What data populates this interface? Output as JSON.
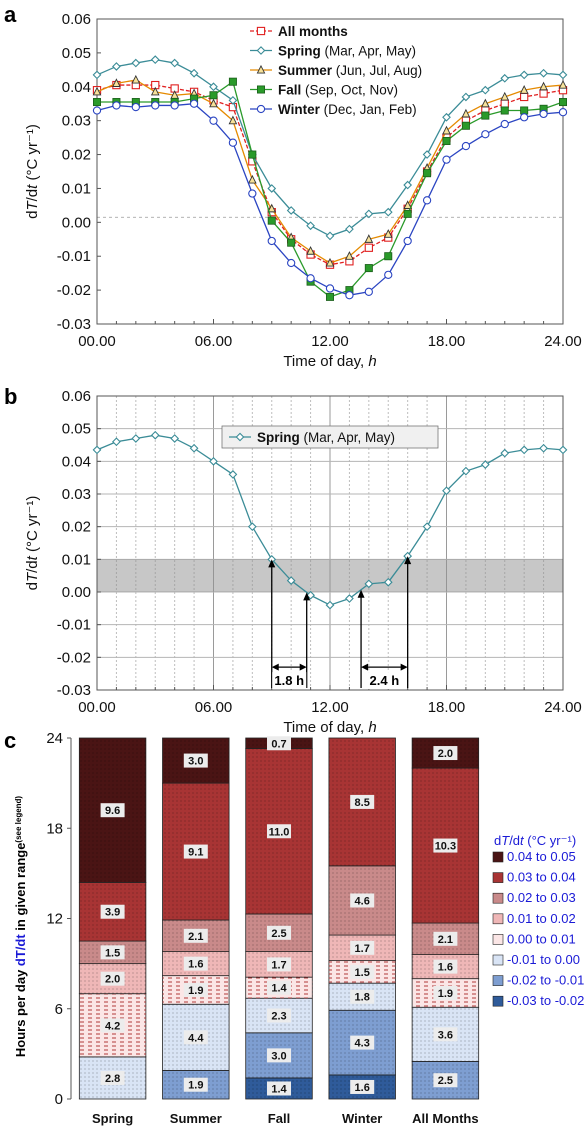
{
  "chart_data": [
    {
      "panel": "a",
      "type": "line",
      "ylabel_html": "dT/dt (°C yr⁻¹)",
      "xlabel": "Time of day, h",
      "ylim": [
        -0.03,
        0.06
      ],
      "xlim": [
        0,
        24
      ],
      "yticks": [
        "-0.03",
        "-0.02",
        "-0.01",
        "0.00",
        "0.01",
        "0.02",
        "0.03",
        "0.04",
        "0.05",
        "0.06"
      ],
      "xticks": [
        "00.00",
        "06.00",
        "12.00",
        "18.00",
        "24.00"
      ],
      "grid": false,
      "legend_position": "top-right",
      "series": [
        {
          "name": "All months",
          "detail": "",
          "color": "#e02020",
          "marker": "square-open",
          "dashed": true,
          "x": [
            0,
            1,
            2,
            3,
            4,
            5,
            6,
            7,
            8,
            9,
            10,
            11,
            12,
            13,
            14,
            15,
            16,
            17,
            18,
            19,
            20,
            21,
            22,
            23,
            24
          ],
          "y": [
            0.039,
            0.0405,
            0.0405,
            0.0405,
            0.0395,
            0.0385,
            0.036,
            0.034,
            0.018,
            0.003,
            -0.005,
            -0.0095,
            -0.0125,
            -0.0115,
            -0.0075,
            -0.0045,
            0.004,
            0.015,
            0.025,
            0.03,
            0.033,
            0.035,
            0.037,
            0.038,
            0.039
          ]
        },
        {
          "name": "Spring",
          "detail": " (Mar, Apr, May)",
          "color": "#3b8c97",
          "marker": "diamond-open",
          "dashed": false,
          "x": [
            0,
            1,
            2,
            3,
            4,
            5,
            6,
            7,
            8,
            9,
            10,
            11,
            12,
            13,
            14,
            15,
            16,
            17,
            18,
            19,
            20,
            21,
            22,
            23,
            24
          ],
          "y": [
            0.0435,
            0.046,
            0.047,
            0.048,
            0.047,
            0.044,
            0.04,
            0.036,
            0.02,
            0.01,
            0.0035,
            -0.001,
            -0.004,
            -0.002,
            0.0025,
            0.003,
            0.011,
            0.02,
            0.031,
            0.037,
            0.039,
            0.0425,
            0.0435,
            0.044,
            0.0435
          ]
        },
        {
          "name": "Summer",
          "detail": " (Jun, Jul, Aug)",
          "color": "#e58a00",
          "marker": "triangle",
          "dashed": false,
          "x": [
            0,
            1,
            2,
            3,
            4,
            5,
            6,
            7,
            8,
            9,
            10,
            11,
            12,
            13,
            14,
            15,
            16,
            17,
            18,
            19,
            20,
            21,
            22,
            23,
            24
          ],
          "y": [
            0.0385,
            0.041,
            0.042,
            0.0385,
            0.0375,
            0.038,
            0.035,
            0.03,
            0.0125,
            0.004,
            -0.0045,
            -0.0085,
            -0.012,
            -0.01,
            -0.005,
            -0.0035,
            0.005,
            0.016,
            0.027,
            0.032,
            0.035,
            0.037,
            0.039,
            0.04,
            0.0405
          ]
        },
        {
          "name": "Fall",
          "detail": " (Sep, Oct, Nov)",
          "color": "#2a9a2a",
          "marker": "square-filled",
          "dashed": false,
          "x": [
            0,
            1,
            2,
            3,
            4,
            5,
            6,
            7,
            8,
            9,
            10,
            11,
            12,
            13,
            14,
            15,
            16,
            17,
            18,
            19,
            20,
            21,
            22,
            23,
            24
          ],
          "y": [
            0.0355,
            0.0355,
            0.0355,
            0.0355,
            0.0355,
            0.0365,
            0.0375,
            0.0415,
            0.02,
            0.0005,
            -0.006,
            -0.0175,
            -0.022,
            -0.02,
            -0.0135,
            -0.01,
            0.0025,
            0.0145,
            0.024,
            0.0285,
            0.0315,
            0.033,
            0.033,
            0.0335,
            0.0355
          ]
        },
        {
          "name": "Winter",
          "detail": " (Dec, Jan, Feb)",
          "color": "#2b45c2",
          "marker": "circle-open",
          "dashed": false,
          "x": [
            0,
            1,
            2,
            3,
            4,
            5,
            6,
            7,
            8,
            9,
            10,
            11,
            12,
            13,
            14,
            15,
            16,
            17,
            18,
            19,
            20,
            21,
            22,
            23,
            24
          ],
          "y": [
            0.033,
            0.0345,
            0.034,
            0.0345,
            0.0345,
            0.035,
            0.03,
            0.0235,
            0.0085,
            -0.0055,
            -0.012,
            -0.0165,
            -0.0195,
            -0.0215,
            -0.0205,
            -0.0155,
            -0.0055,
            0.0065,
            0.0185,
            0.0225,
            0.026,
            0.029,
            0.031,
            0.032,
            0.0325
          ]
        }
      ]
    },
    {
      "panel": "b",
      "type": "line",
      "ylabel_html": "dT/dt (°C yr⁻¹)",
      "xlabel": "Time of day, h",
      "ylim": [
        -0.03,
        0.06
      ],
      "xlim": [
        0,
        24
      ],
      "yticks": [
        "-0.03",
        "-0.02",
        "-0.01",
        "0.00",
        "0.01",
        "0.02",
        "0.03",
        "0.04",
        "0.05",
        "0.06"
      ],
      "yticks_display": [
        "-0.03",
        "-0.02",
        "-0.01",
        "0.00",
        "0.01",
        "0.02",
        "0.03",
        "0.04",
        "0.05",
        "0.06"
      ],
      "xticks": [
        "00.00",
        "06.00",
        "12.00",
        "18.00",
        "24.00"
      ],
      "grid": true,
      "shaded_band": [
        0.0,
        0.01
      ],
      "legend_position": "top-center",
      "series": [
        {
          "name": "Spring",
          "detail": " (Mar, Apr, May)",
          "color": "#3b8c97",
          "marker": "diamond-open",
          "x": [
            0,
            1,
            2,
            3,
            4,
            5,
            6,
            7,
            8,
            9,
            10,
            11,
            12,
            13,
            14,
            15,
            16,
            17,
            18,
            19,
            20,
            21,
            22,
            23,
            24
          ],
          "y": [
            0.0435,
            0.046,
            0.047,
            0.048,
            0.047,
            0.044,
            0.04,
            0.036,
            0.02,
            0.01,
            0.0035,
            -0.001,
            -0.004,
            -0.002,
            0.0025,
            0.003,
            0.011,
            0.02,
            0.031,
            0.037,
            0.039,
            0.0425,
            0.0435,
            0.044,
            0.0435
          ]
        }
      ],
      "annotations": [
        {
          "label": "1.8 h",
          "from": 9.0,
          "to": 10.8
        },
        {
          "label": "2.4 h",
          "from": 13.6,
          "to": 16.0
        }
      ],
      "arrows_x": [
        9.0,
        10.8,
        13.6,
        16.0
      ]
    },
    {
      "panel": "c",
      "type": "bar",
      "stacked": true,
      "ylabel_parts": [
        "Hours per day ",
        "dT/dt",
        " in given range",
        "(see legend)"
      ],
      "ylim": [
        0,
        24
      ],
      "yticks": [
        "0",
        "6",
        "12",
        "18",
        "24"
      ],
      "categories": [
        "Spring",
        "Summer",
        "Fall",
        "Winter",
        "All Months"
      ],
      "legend_title": "dT/dt (°C yr⁻¹)",
      "series": [
        {
          "name": "-0.03 to -0.02",
          "color": "#2f5b9a",
          "values": [
            0,
            0,
            1.4,
            1.6,
            0
          ],
          "labels": [
            "",
            "",
            "1.4",
            "1.6",
            ""
          ]
        },
        {
          "name": "-0.02 to -0.01",
          "color": "#7e9ed1",
          "values": [
            0,
            1.9,
            3.0,
            4.3,
            2.5
          ],
          "labels": [
            "",
            "1.9",
            "3.0",
            "4.3",
            "2.5"
          ]
        },
        {
          "name": "-0.01 to 0.00",
          "color": "#d9e4f5",
          "values": [
            2.8,
            4.4,
            2.3,
            1.8,
            3.6
          ],
          "labels": [
            "2.8",
            "4.4",
            "2.3",
            "1.8",
            "3.6"
          ]
        },
        {
          "name": "0.00 to 0.01",
          "color": "#fbe6e6",
          "values": [
            4.2,
            1.9,
            1.4,
            1.5,
            1.9
          ],
          "labels": [
            "4.2",
            "1.9",
            "1.4",
            "1.5",
            "1.9"
          ]
        },
        {
          "name": "0.01 to 0.02",
          "color": "#efb7b7",
          "values": [
            2.0,
            1.6,
            1.7,
            1.7,
            1.6
          ],
          "labels": [
            "2.0",
            "1.6",
            "1.7",
            "1.7",
            "1.6"
          ]
        },
        {
          "name": "0.02 to 0.03",
          "color": "#c98a8a",
          "values": [
            1.5,
            2.1,
            2.5,
            4.6,
            2.1
          ],
          "labels": [
            "1.5",
            "2.1",
            "2.5",
            "4.6",
            "2.1"
          ]
        },
        {
          "name": "0.03 to 0.04",
          "color": "#a83434",
          "values": [
            3.9,
            9.1,
            11.0,
            8.5,
            10.3
          ],
          "labels": [
            "3.9",
            "9.1",
            "11.0",
            "8.5",
            "10.3"
          ]
        },
        {
          "name": "0.04 to 0.05",
          "color": "#4a1414",
          "values": [
            9.6,
            3.0,
            0.7,
            0,
            2.0
          ],
          "labels": [
            "9.6",
            "3.0",
            "0.7",
            "",
            "2.0"
          ]
        }
      ]
    }
  ]
}
